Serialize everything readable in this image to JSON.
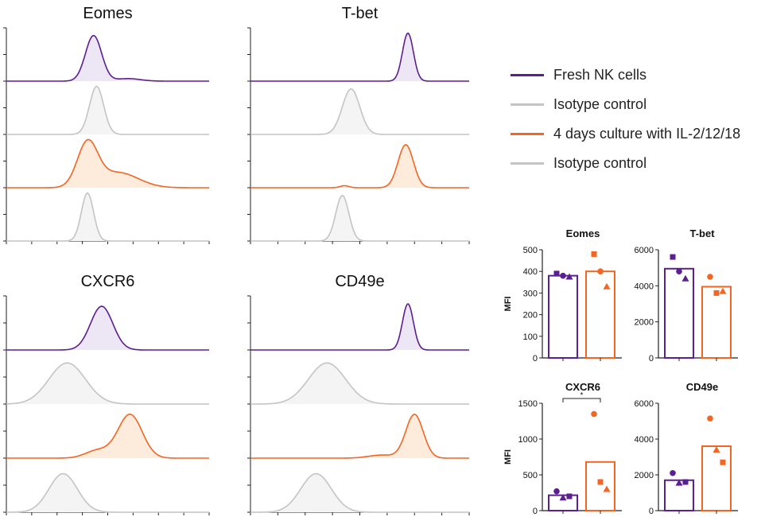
{
  "colors": {
    "fresh": "#5b1f91",
    "fresh_fill": "#ede6f5",
    "isotype": "#c4c4c4",
    "isotype_fill": "#f4f4f4",
    "culture": "#f26522",
    "culture_fill": "#fdebdc",
    "axis": "#222222"
  },
  "legend": [
    {
      "label": "Fresh NK cells",
      "color_key": "fresh"
    },
    {
      "label": "Isotype control",
      "color_key": "isotype"
    },
    {
      "label": "4 days culture with IL-2/12/18",
      "color_key": "culture"
    },
    {
      "label": "Isotype control",
      "color_key": "isotype"
    }
  ],
  "chart_data": [
    {
      "type": "histogram-overlay",
      "title": "Eomes",
      "x_range": [
        0,
        1
      ],
      "tracks": [
        {
          "series": "Fresh NK cells",
          "color_key": "fresh",
          "peaks": [
            {
              "center": 0.43,
              "width": 0.04,
              "height": 0.9
            },
            {
              "center": 0.6,
              "width": 0.06,
              "height": 0.05
            }
          ]
        },
        {
          "series": "Isotype control",
          "color_key": "isotype",
          "peaks": [
            {
              "center": 0.445,
              "width": 0.035,
              "height": 0.95
            }
          ]
        },
        {
          "series": "4 days culture with IL-2/12/18",
          "color_key": "culture",
          "peaks": [
            {
              "center": 0.4,
              "width": 0.05,
              "height": 0.85
            },
            {
              "center": 0.55,
              "width": 0.1,
              "height": 0.3
            }
          ]
        },
        {
          "series": "Isotype control",
          "color_key": "isotype",
          "peaks": [
            {
              "center": 0.4,
              "width": 0.03,
              "height": 0.95
            }
          ]
        }
      ]
    },
    {
      "type": "histogram-overlay",
      "title": "T-bet",
      "x_range": [
        0,
        1
      ],
      "tracks": [
        {
          "series": "Fresh NK cells",
          "color_key": "fresh",
          "peaks": [
            {
              "center": 0.72,
              "width": 0.025,
              "height": 0.95
            }
          ]
        },
        {
          "series": "Isotype control",
          "color_key": "isotype",
          "peaks": [
            {
              "center": 0.46,
              "width": 0.04,
              "height": 0.9
            }
          ]
        },
        {
          "series": "4 days culture with IL-2/12/18",
          "color_key": "culture",
          "peaks": [
            {
              "center": 0.71,
              "width": 0.035,
              "height": 0.85
            },
            {
              "center": 0.43,
              "width": 0.02,
              "height": 0.04
            }
          ]
        },
        {
          "series": "Isotype control",
          "color_key": "isotype",
          "peaks": [
            {
              "center": 0.42,
              "width": 0.03,
              "height": 0.9
            }
          ]
        }
      ]
    },
    {
      "type": "histogram-overlay",
      "title": "CXCR6",
      "x_range": [
        0,
        1
      ],
      "tracks": [
        {
          "series": "Fresh NK cells",
          "color_key": "fresh",
          "peaks": [
            {
              "center": 0.47,
              "width": 0.055,
              "height": 0.85
            }
          ]
        },
        {
          "series": "Isotype control",
          "color_key": "isotype",
          "peaks": [
            {
              "center": 0.3,
              "width": 0.09,
              "height": 0.8
            }
          ]
        },
        {
          "series": "4 days culture with IL-2/12/18",
          "color_key": "culture",
          "peaks": [
            {
              "center": 0.61,
              "width": 0.06,
              "height": 0.85
            },
            {
              "center": 0.45,
              "width": 0.06,
              "height": 0.15
            }
          ]
        },
        {
          "series": "Isotype control",
          "color_key": "isotype",
          "peaks": [
            {
              "center": 0.28,
              "width": 0.07,
              "height": 0.75
            }
          ]
        }
      ]
    },
    {
      "type": "histogram-overlay",
      "title": "CD49e",
      "x_range": [
        0,
        1
      ],
      "tracks": [
        {
          "series": "Fresh NK cells",
          "color_key": "fresh",
          "peaks": [
            {
              "center": 0.72,
              "width": 0.025,
              "height": 0.9
            }
          ]
        },
        {
          "series": "Isotype control",
          "color_key": "isotype",
          "peaks": [
            {
              "center": 0.35,
              "width": 0.085,
              "height": 0.8
            }
          ]
        },
        {
          "series": "4 days culture with IL-2/12/18",
          "color_key": "culture",
          "peaks": [
            {
              "center": 0.75,
              "width": 0.04,
              "height": 0.85
            },
            {
              "center": 0.6,
              "width": 0.06,
              "height": 0.06
            }
          ]
        },
        {
          "series": "Isotype control",
          "color_key": "isotype",
          "peaks": [
            {
              "center": 0.3,
              "width": 0.07,
              "height": 0.75
            }
          ]
        }
      ]
    },
    {
      "type": "bar",
      "title": "Eomes",
      "ylabel": "MFI",
      "ylim": [
        0,
        500
      ],
      "yticks": [
        0,
        100,
        200,
        300,
        400,
        500
      ],
      "bars": [
        {
          "group": "Fresh NK cells",
          "color_key": "fresh",
          "mean": 380,
          "points": [
            {
              "marker": "square",
              "value": 390
            },
            {
              "marker": "circle",
              "value": 380
            },
            {
              "marker": "triangle",
              "value": 375
            }
          ]
        },
        {
          "group": "4 days culture with IL-2/12/18",
          "color_key": "culture",
          "mean": 400,
          "points": [
            {
              "marker": "square",
              "value": 480
            },
            {
              "marker": "circle",
              "value": 400
            },
            {
              "marker": "triangle",
              "value": 330
            }
          ]
        }
      ]
    },
    {
      "type": "bar",
      "title": "T-bet",
      "ylabel": "",
      "ylim": [
        0,
        6000
      ],
      "yticks": [
        0,
        2000,
        4000,
        6000
      ],
      "bars": [
        {
          "group": "Fresh NK cells",
          "color_key": "fresh",
          "mean": 4950,
          "points": [
            {
              "marker": "square",
              "value": 5600
            },
            {
              "marker": "circle",
              "value": 4800
            },
            {
              "marker": "triangle",
              "value": 4400
            }
          ]
        },
        {
          "group": "4 days culture with IL-2/12/18",
          "color_key": "culture",
          "mean": 3950,
          "points": [
            {
              "marker": "circle",
              "value": 4500
            },
            {
              "marker": "square",
              "value": 3600
            },
            {
              "marker": "triangle",
              "value": 3700
            }
          ]
        }
      ]
    },
    {
      "type": "bar",
      "title": "CXCR6",
      "ylabel": "MFI",
      "ylim": [
        0,
        1500
      ],
      "yticks": [
        0,
        500,
        1000,
        1500
      ],
      "significance": "*",
      "bars": [
        {
          "group": "Fresh NK cells",
          "color_key": "fresh",
          "mean": 215,
          "points": [
            {
              "marker": "circle",
              "value": 270
            },
            {
              "marker": "triangle",
              "value": 180
            },
            {
              "marker": "square",
              "value": 200
            }
          ]
        },
        {
          "group": "4 days culture with IL-2/12/18",
          "color_key": "culture",
          "mean": 680,
          "points": [
            {
              "marker": "circle",
              "value": 1350
            },
            {
              "marker": "square",
              "value": 400
            },
            {
              "marker": "triangle",
              "value": 300
            }
          ]
        }
      ]
    },
    {
      "type": "bar",
      "title": "CD49e",
      "ylabel": "",
      "ylim": [
        0,
        6000
      ],
      "yticks": [
        0,
        2000,
        4000,
        6000
      ],
      "bars": [
        {
          "group": "Fresh NK cells",
          "color_key": "fresh",
          "mean": 1700,
          "points": [
            {
              "marker": "circle",
              "value": 2100
            },
            {
              "marker": "triangle",
              "value": 1550
            },
            {
              "marker": "square",
              "value": 1600
            }
          ]
        },
        {
          "group": "4 days culture with IL-2/12/18",
          "color_key": "culture",
          "mean": 3600,
          "points": [
            {
              "marker": "circle",
              "value": 5150
            },
            {
              "marker": "triangle",
              "value": 3400
            },
            {
              "marker": "square",
              "value": 2700
            }
          ]
        }
      ]
    }
  ]
}
